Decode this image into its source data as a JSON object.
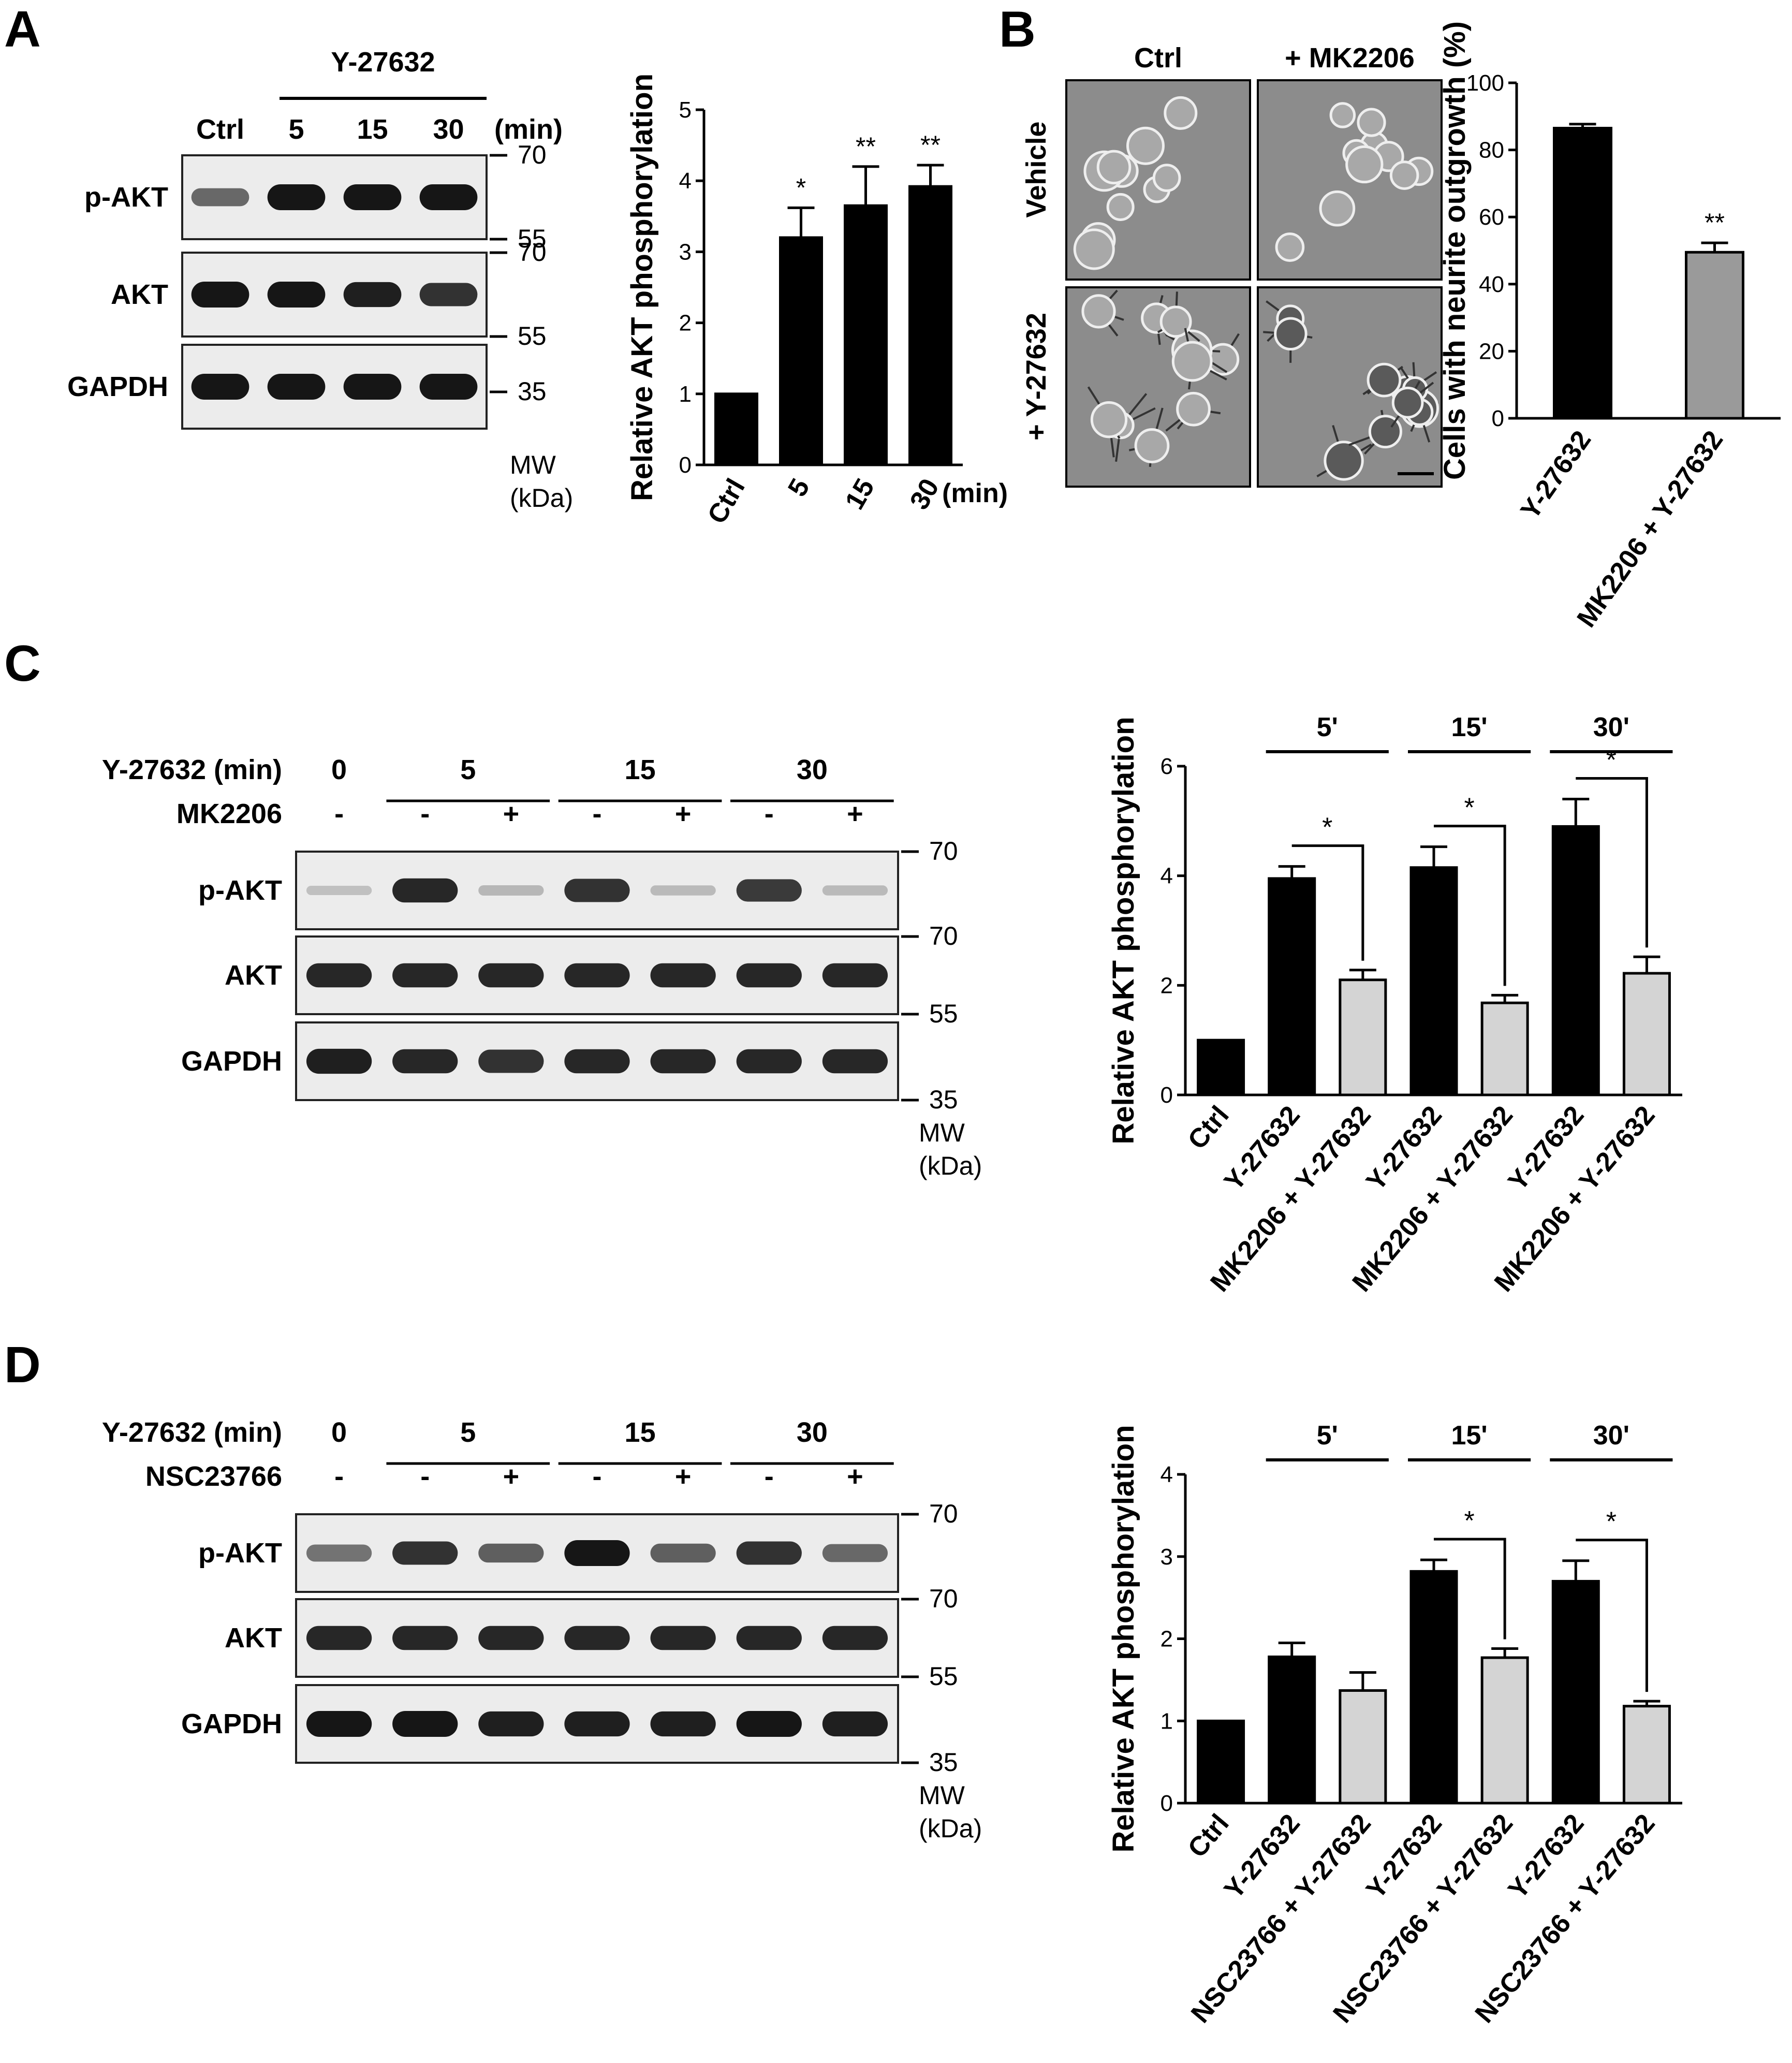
{
  "colors": {
    "black_bar": "#000000",
    "grey_bar": "#9a9a9a",
    "light_bar": "#d4d4d4",
    "blot_bg": "#ececec",
    "band": "#161616",
    "micro_bg": "#8c8c8c"
  },
  "panelA": {
    "letter": "A",
    "blot": {
      "header": "Y-27632",
      "lanes": [
        "Ctrl",
        "5",
        "15",
        "30"
      ],
      "unit": "(min)",
      "rows": [
        {
          "label": "p-AKT",
          "intensities": [
            0.55,
            1,
            1,
            1
          ]
        },
        {
          "label": "AKT",
          "intensities": [
            1,
            1,
            0.95,
            0.85
          ]
        },
        {
          "label": "GAPDH",
          "intensities": [
            1,
            1,
            1,
            1
          ]
        }
      ],
      "mw": [
        {
          "value": "70",
          "row": 0,
          "pos": "top"
        },
        {
          "value": "55",
          "row": 0,
          "pos": "bottom"
        },
        {
          "value": "70",
          "row": 1,
          "pos": "top"
        },
        {
          "value": "55",
          "row": 1,
          "pos": "bottom"
        },
        {
          "value": "35",
          "row": 2,
          "pos": "mid"
        }
      ],
      "mw_label_1": "MW",
      "mw_label_2": "(kDa)"
    }
  },
  "panelB": {
    "letter": "B",
    "micro": {
      "cols": [
        "Ctrl",
        "+ MK2206"
      ],
      "rows": [
        "Vehicle",
        "+ Y-27632"
      ]
    }
  },
  "panelC": {
    "letter": "C",
    "blot": {
      "treatment_label": "Y-27632 (min)",
      "inhibitor_label": "MK2206",
      "groups": [
        {
          "time": "0",
          "lanes": 1
        },
        {
          "time": "5",
          "lanes": 2
        },
        {
          "time": "15",
          "lanes": 2
        },
        {
          "time": "30",
          "lanes": 2
        }
      ],
      "inhibitor_signs": [
        "-",
        "-",
        "+",
        "-",
        "+",
        "-",
        "+"
      ],
      "rows": [
        {
          "label": "p-AKT",
          "intensities": [
            0.06,
            0.9,
            0.12,
            0.85,
            0.1,
            0.8,
            0.1
          ]
        },
        {
          "label": "AKT",
          "intensities": [
            0.9,
            0.9,
            0.9,
            0.9,
            0.9,
            0.9,
            0.9
          ]
        },
        {
          "label": "GAPDH",
          "intensities": [
            0.95,
            0.9,
            0.85,
            0.9,
            0.9,
            0.9,
            0.9
          ]
        }
      ],
      "mw": [
        {
          "value": "70",
          "row": 0,
          "pos": "top"
        },
        {
          "value": "70",
          "row": 1,
          "pos": "top"
        },
        {
          "value": "55",
          "row": 1,
          "pos": "bottom"
        },
        {
          "value": "35",
          "row": 2,
          "pos": "bottom"
        }
      ],
      "mw_label_1": "MW",
      "mw_label_2": "(kDa)"
    }
  },
  "panelD": {
    "letter": "D",
    "blot": {
      "treatment_label": "Y-27632 (min)",
      "inhibitor_label": "NSC23766",
      "groups": [
        {
          "time": "0",
          "lanes": 1
        },
        {
          "time": "5",
          "lanes": 2
        },
        {
          "time": "15",
          "lanes": 2
        },
        {
          "time": "30",
          "lanes": 2
        }
      ],
      "inhibitor_signs": [
        "-",
        "-",
        "+",
        "-",
        "+",
        "-",
        "+"
      ],
      "rows": [
        {
          "label": "p-AKT",
          "intensities": [
            0.5,
            0.85,
            0.6,
            1,
            0.6,
            0.85,
            0.55
          ]
        },
        {
          "label": "AKT",
          "intensities": [
            0.9,
            0.9,
            0.9,
            0.9,
            0.9,
            0.9,
            0.9
          ]
        },
        {
          "label": "GAPDH",
          "intensities": [
            1,
            1,
            0.95,
            0.95,
            0.95,
            1,
            0.95
          ]
        }
      ],
      "mw": [
        {
          "value": "70",
          "row": 0,
          "pos": "top"
        },
        {
          "value": "70",
          "row": 1,
          "pos": "top"
        },
        {
          "value": "55",
          "row": 1,
          "pos": "bottom"
        },
        {
          "value": "35",
          "row": 2,
          "pos": "bottom"
        }
      ],
      "mw_label_1": "MW",
      "mw_label_2": "(kDa)"
    }
  },
  "chart_data": [
    {
      "id": "A",
      "type": "bar",
      "ylabel": "Relative AKT phosphorylation",
      "categories": [
        "Ctrl",
        "5",
        "15",
        "30"
      ],
      "x_unit": "(min)",
      "values": [
        1.0,
        3.2,
        3.65,
        3.92
      ],
      "errors": [
        0,
        0.42,
        0.55,
        0.3
      ],
      "colors": [
        "#000000",
        "#000000",
        "#000000",
        "#000000"
      ],
      "annotations": [
        "",
        "*",
        "**",
        "**"
      ],
      "ylim": [
        0,
        5
      ],
      "yticks": [
        "0",
        "1",
        "2",
        "3",
        "4",
        "5"
      ],
      "comparisons": [],
      "time_groups": []
    },
    {
      "id": "B",
      "type": "bar",
      "ylabel": "Cells with neurite outgrowth (%)",
      "categories": [
        "Y-27632",
        "MK2206 + Y-27632"
      ],
      "values": [
        86.5,
        49.5
      ],
      "errors": [
        1.2,
        2.8
      ],
      "colors": [
        "#000000",
        "#9a9a9a"
      ],
      "annotations": [
        "",
        "**"
      ],
      "ylim": [
        0,
        100
      ],
      "yticks": [
        "0",
        "20",
        "40",
        "60",
        "80",
        "100"
      ],
      "comparisons": [],
      "time_groups": []
    },
    {
      "id": "C",
      "type": "bar",
      "ylabel": "Relative AKT phosphorylation",
      "categories": [
        "Ctrl",
        "Y-27632",
        "MK2206 + Y-27632",
        "Y-27632",
        "MK2206 + Y-27632",
        "Y-27632",
        "MK2206 + Y-27632"
      ],
      "values": [
        1.0,
        3.95,
        2.1,
        4.15,
        1.68,
        4.9,
        2.22
      ],
      "errors": [
        0,
        0.22,
        0.18,
        0.38,
        0.14,
        0.5,
        0.3
      ],
      "colors": [
        "#000000",
        "#000000",
        "#d4d4d4",
        "#000000",
        "#d4d4d4",
        "#000000",
        "#d4d4d4"
      ],
      "annotations": [
        "",
        "",
        "",
        "",
        "",
        "",
        ""
      ],
      "ylim": [
        0,
        6
      ],
      "yticks": [
        "0",
        "2",
        "4",
        "6"
      ],
      "comparisons": [
        {
          "from": 1,
          "to": 2,
          "label": "*"
        },
        {
          "from": 3,
          "to": 4,
          "label": "*"
        },
        {
          "from": 5,
          "to": 6,
          "label": "*"
        }
      ],
      "time_groups": [
        {
          "label": "5'",
          "from": 1,
          "to": 2
        },
        {
          "label": "15'",
          "from": 3,
          "to": 4
        },
        {
          "label": "30'",
          "from": 5,
          "to": 6
        }
      ]
    },
    {
      "id": "D",
      "type": "bar",
      "ylabel": "Relative AKT phosphorylation",
      "categories": [
        "Ctrl",
        "Y-27632",
        "NSC23766 + Y-27632",
        "Y-27632",
        "NSC23766 + Y-27632",
        "Y-27632",
        "NSC23766 + Y-27632"
      ],
      "values": [
        1.0,
        1.78,
        1.37,
        2.82,
        1.77,
        2.7,
        1.18
      ],
      "errors": [
        0,
        0.17,
        0.22,
        0.14,
        0.11,
        0.25,
        0.06
      ],
      "colors": [
        "#000000",
        "#000000",
        "#d4d4d4",
        "#000000",
        "#d4d4d4",
        "#000000",
        "#d4d4d4"
      ],
      "annotations": [
        "",
        "",
        "",
        "",
        "",
        "",
        ""
      ],
      "ylim": [
        0,
        4
      ],
      "yticks": [
        "0",
        "1",
        "2",
        "3",
        "4"
      ],
      "comparisons": [
        {
          "from": 3,
          "to": 4,
          "label": "*"
        },
        {
          "from": 5,
          "to": 6,
          "label": "*"
        }
      ],
      "time_groups": [
        {
          "label": "5'",
          "from": 1,
          "to": 2
        },
        {
          "label": "15'",
          "from": 3,
          "to": 4
        },
        {
          "label": "30'",
          "from": 5,
          "to": 6
        }
      ]
    }
  ]
}
